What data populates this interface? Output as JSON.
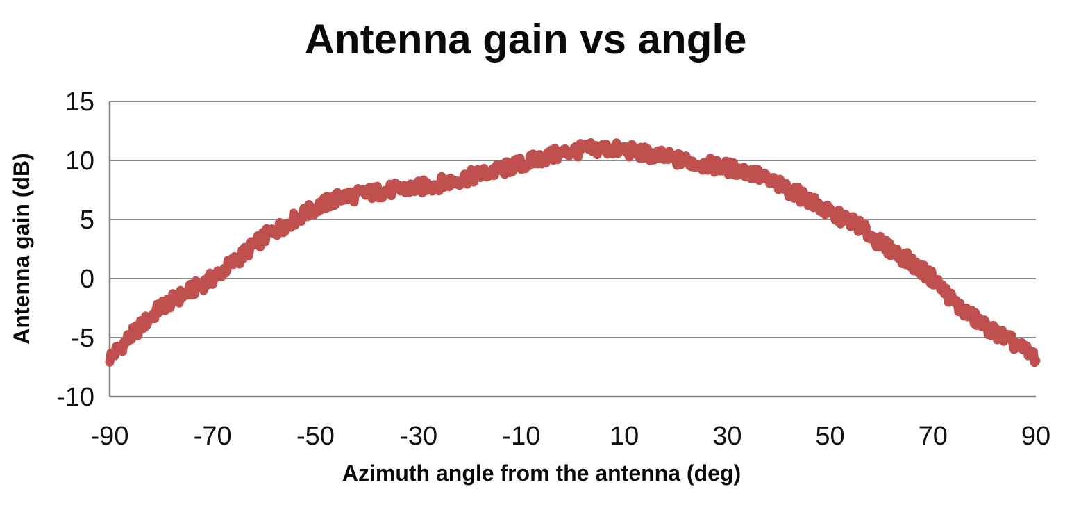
{
  "chart_data": {
    "type": "line",
    "title": "Antenna gain vs angle",
    "xlabel": "Azimuth angle from the antenna (deg)",
    "ylabel": "Antenna gain (dB)",
    "xlim": [
      -90,
      90
    ],
    "ylim": [
      -10,
      15
    ],
    "x_ticks": [
      -90,
      -70,
      -50,
      -30,
      -10,
      10,
      30,
      50,
      70,
      90
    ],
    "y_ticks": [
      15,
      10,
      5,
      0,
      -5,
      -10
    ],
    "grid": "horizontal-only",
    "legend": "none",
    "series": [
      {
        "name": "Antenna gain",
        "appearance": "very thick noisy red line",
        "color": "#C0504D",
        "x": [
          -90,
          -85,
          -80,
          -75,
          -70,
          -65,
          -60,
          -55,
          -50,
          -45,
          -40,
          -35,
          -30,
          -25,
          -20,
          -15,
          -10,
          -5,
          0,
          5,
          10,
          15,
          20,
          25,
          30,
          35,
          40,
          45,
          50,
          55,
          60,
          65,
          70,
          75,
          80,
          85,
          90
        ],
        "y": [
          -6.7,
          -4.5,
          -2.4,
          -1.2,
          0.0,
          1.7,
          3.5,
          4.8,
          6.0,
          6.9,
          7.2,
          7.5,
          7.7,
          8.1,
          8.6,
          9.1,
          9.7,
          10.3,
          10.8,
          11.0,
          10.9,
          10.5,
          10.1,
          9.7,
          9.4,
          8.9,
          7.9,
          6.9,
          5.5,
          4.7,
          2.9,
          1.6,
          0.0,
          -2.4,
          -4.0,
          -5.3,
          -6.7
        ]
      }
    ],
    "annotations": {
      "peak_gain_db": 11.0,
      "peak_angle_deg": 5,
      "edge_gain_db": -6.7
    }
  },
  "colors": {
    "background": "#ffffff",
    "series": "#C0504D",
    "gridline": "#8C8C8C",
    "axis": "#808080",
    "text": "#0a0a0a"
  }
}
